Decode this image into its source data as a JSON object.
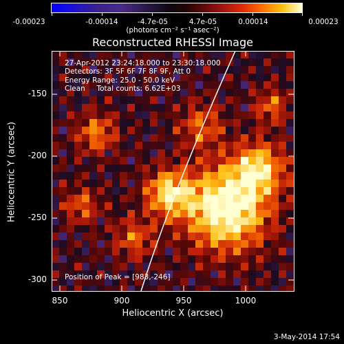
{
  "colorbar": {
    "tick_labels": [
      "-0.00023",
      "-0.00014",
      "-4.7e-05",
      "4.7e-05",
      "0.00014",
      "0.00023"
    ],
    "units_label": "(photons cm⁻² s⁻¹ asec⁻²)"
  },
  "plot": {
    "title": "Reconstructed RHESSI Image",
    "info_lines": [
      "27-Apr-2012 23:24:18.000 to 23:30:18.000",
      "Detectors: 3F 5F 6F 7F 8F 9F, Att 0",
      "Energy Range: 25.0 - 50.0 keV",
      "Clean     Total counts: 6.62E+03"
    ],
    "peak_label": "Position of Peak = [983,-246]",
    "x_axis_title": "Heliocentric X (arcsec)",
    "y_axis_title": "Heliocentric Y (arcsec)",
    "x_tick_labels": [
      "850",
      "900",
      "950",
      "1000"
    ],
    "y_tick_labels": [
      "-150",
      "-200",
      "-250",
      "-300"
    ]
  },
  "footer": {
    "date": "3-May-2014 17:54"
  },
  "colors": {
    "background": "#000000",
    "axes": "#ffffff",
    "limb": "#ffffff"
  }
}
